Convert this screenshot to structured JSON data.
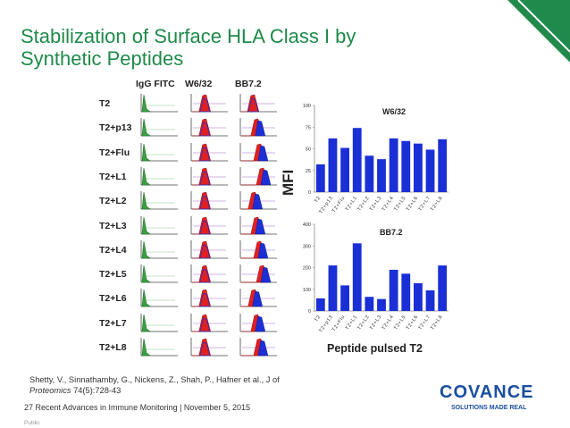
{
  "title_line1": "Stabilization of Surface HLA Class I by",
  "title_line2": "Synthetic Peptides",
  "flow": {
    "headers": [
      "IgG FITC",
      "W6/32",
      "BB7.2"
    ],
    "rows": [
      "T2",
      "T2+p13",
      "T2+Flu",
      "T2+L1",
      "T2+L2",
      "T2+L3",
      "T2+L4",
      "T2+L5",
      "T2+L6",
      "T2+L7",
      "T2+L8"
    ]
  },
  "y_axis_label": "MFI",
  "x_axis_label": "Peptide pulsed T2",
  "chart_data": [
    {
      "type": "bar",
      "title": "W6/32",
      "categories": [
        "T2",
        "T2+p13",
        "T2+Flu",
        "T2+L1",
        "T2+L2",
        "T2+L3",
        "T2+L4",
        "T2+L5",
        "T2+L6",
        "T2+L7",
        "T2+L8"
      ],
      "values": [
        32,
        62,
        51,
        74,
        42,
        38,
        62,
        59,
        56,
        49,
        61
      ],
      "ylim": [
        0,
        100
      ],
      "yticks": [
        0,
        25,
        50,
        75,
        100
      ],
      "color": "#1a2fd6"
    },
    {
      "type": "bar",
      "title": "BB7.2",
      "categories": [
        "T2",
        "T2+p13",
        "T2+Flu",
        "T2+L1",
        "T2+L2",
        "T2+L3",
        "T2+L4",
        "T2+L5",
        "T2+L6",
        "T2+L7",
        "T2+L8"
      ],
      "values": [
        58,
        210,
        118,
        312,
        65,
        55,
        190,
        172,
        128,
        95,
        210
      ],
      "ylim": [
        0,
        400
      ],
      "yticks": [
        0,
        100,
        200,
        300,
        400
      ],
      "color": "#1a2fd6"
    }
  ],
  "citation_authors": "Shetty, V., Sinnathamby, G., Nickens, Z., Shah, P., Hafner et al., J of",
  "citation_journal": "Proteomics",
  "citation_rest": " 74(5):728-43",
  "footer": "27 Recent Advances in Immune Monitoring | November 5, 2015",
  "classification": "Public",
  "logo": {
    "name": "COVANCE",
    "tagline": "SOLUTIONS MADE REAL",
    "brand_color": "#1a4fa0"
  },
  "accent_color": "#1f8a4a"
}
